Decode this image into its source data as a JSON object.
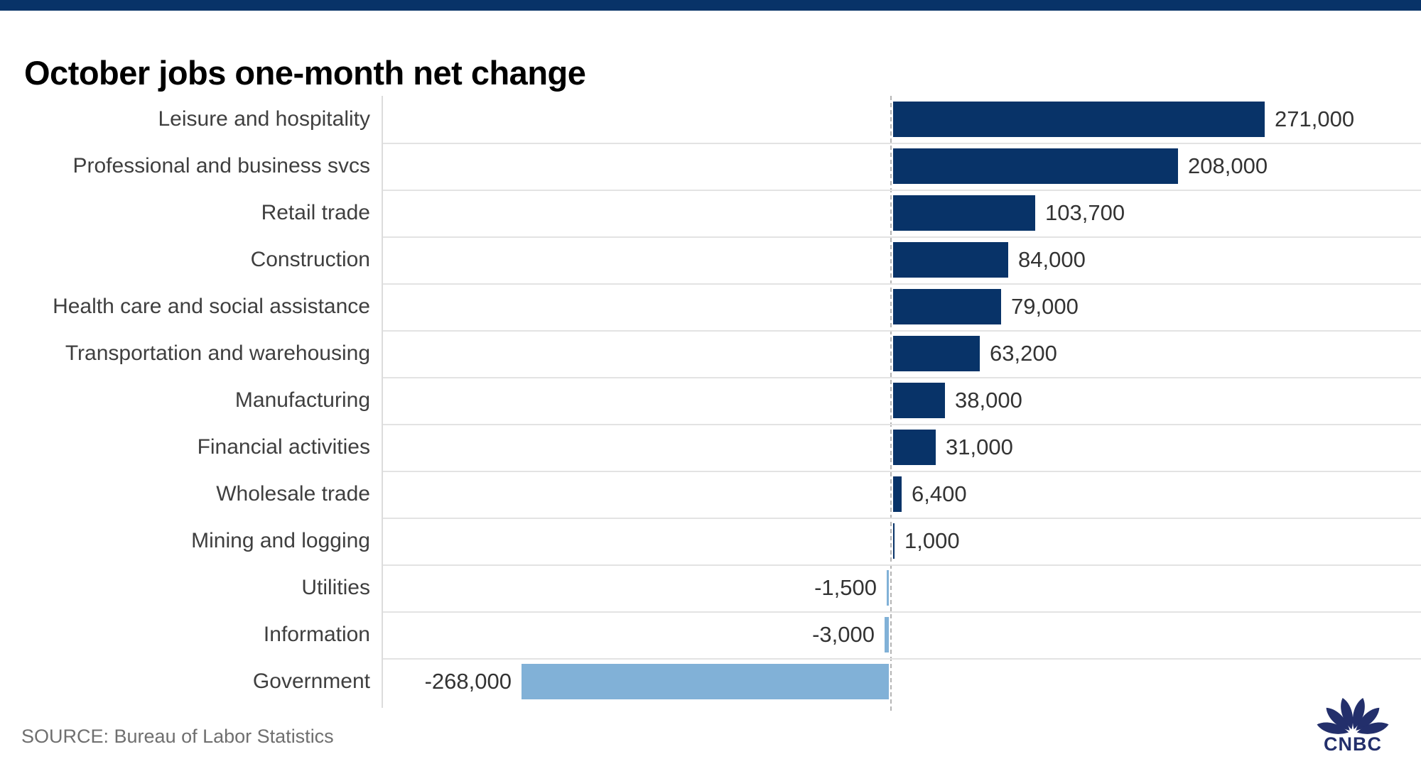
{
  "page": {
    "title": "October jobs one-month net change",
    "source": "SOURCE: Bureau of Labor Statistics"
  },
  "logo": {
    "wordmark": "CNBC"
  },
  "colors": {
    "top_bar": "#083368",
    "bar_positive": "#083368",
    "bar_negative": "#81b1d7",
    "gridline": "#e3e3e3",
    "axis_border": "#dcdcdc",
    "zero_dashed_line": "#b5b5b5",
    "title_text": "#000000",
    "category_text": "#3f3f3f",
    "value_text": "#333333",
    "source_text": "#6f6f6f",
    "logo_navy": "#232f6b"
  },
  "chart_data": {
    "type": "bar",
    "orientation": "horizontal",
    "title": "October jobs one-month net change",
    "categories": [
      "Leisure and hospitality",
      "Professional and business svcs",
      "Retail trade",
      "Construction",
      "Health care and social assistance",
      "Transportation and warehousing",
      "Manufacturing",
      "Financial activities",
      "Wholesale trade",
      "Mining and logging",
      "Utilities",
      "Information",
      "Government"
    ],
    "values": [
      271000,
      208000,
      103700,
      84000,
      79000,
      63200,
      38000,
      31000,
      6400,
      1000,
      -1500,
      -3000,
      -268000
    ],
    "value_labels": [
      "271,000",
      "208,000",
      "103,700",
      "84,000",
      "79,000",
      "63,200",
      "38,000",
      "31,000",
      "6,400",
      "1,000",
      "-1,500",
      "-3,000",
      "-268,000"
    ],
    "xlabel": "",
    "ylabel": "",
    "xlim": [
      -371000,
      387000
    ],
    "grid": "horizontal row separators only",
    "legend": "none",
    "zero_axis": "dashed vertical line at 0"
  }
}
